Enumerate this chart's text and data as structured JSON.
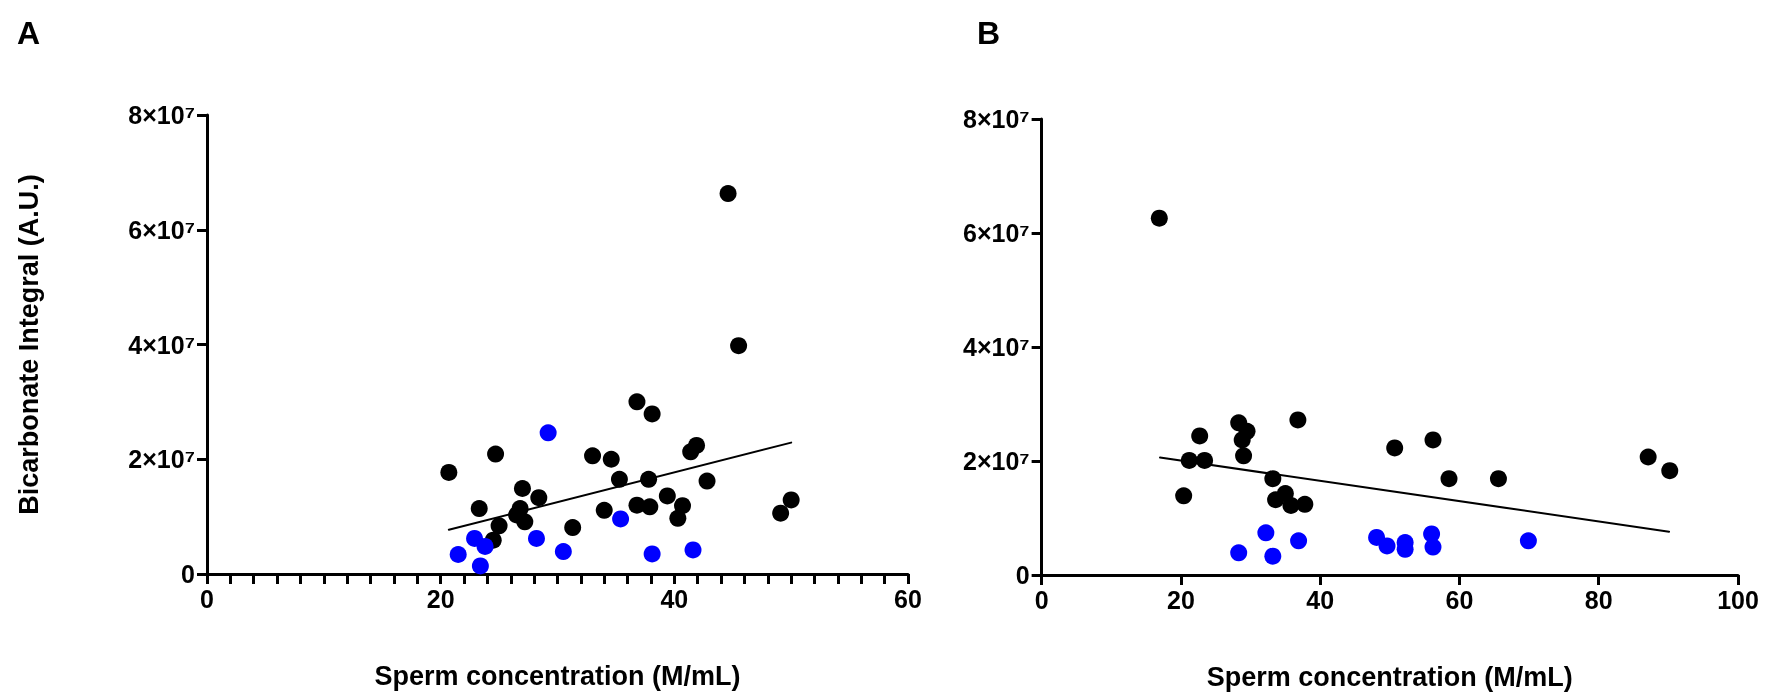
{
  "chart_data": [
    {
      "type": "scatter",
      "title": "A",
      "xlabel": "Sperm concentration (M/mL)",
      "ylabel": "Bicarbonate Integral (A.U.)",
      "marker": "circle",
      "grid": false,
      "xlim": [
        0,
        60
      ],
      "ylim": [
        0,
        80000000
      ],
      "xticks": [
        0,
        {
          "value": 2,
          "label": null
        },
        {
          "value": 4,
          "label": null
        },
        {
          "value": 6,
          "label": null
        },
        {
          "value": 8,
          "label": null
        },
        {
          "value": 10,
          "label": null
        },
        {
          "value": 12,
          "label": null
        },
        {
          "value": 14,
          "label": null
        },
        {
          "value": 16,
          "label": null
        },
        {
          "value": 18,
          "label": null
        },
        20,
        {
          "value": 22,
          "label": null
        },
        {
          "value": 24,
          "label": null
        },
        {
          "value": 26,
          "label": null
        },
        {
          "value": 28,
          "label": null
        },
        {
          "value": 30,
          "label": null
        },
        {
          "value": 32,
          "label": null
        },
        {
          "value": 34,
          "label": null
        },
        {
          "value": 36,
          "label": null
        },
        {
          "value": 38,
          "label": null
        },
        40,
        {
          "value": 42,
          "label": null
        },
        {
          "value": 44,
          "label": null
        },
        {
          "value": 46,
          "label": null
        },
        {
          "value": 48,
          "label": null
        },
        {
          "value": 50,
          "label": null
        },
        {
          "value": 52,
          "label": null
        },
        {
          "value": 54,
          "label": null
        },
        {
          "value": 56,
          "label": null
        },
        {
          "value": 58,
          "label": null
        },
        60
      ],
      "yticks": [
        0,
        {
          "value": 20000000,
          "label": "2×10⁷"
        },
        {
          "value": 40000000,
          "label": "4×10⁷"
        },
        {
          "value": 60000000,
          "label": "6×10⁷"
        },
        {
          "value": 80000000,
          "label": "8×10⁷"
        }
      ],
      "series": [
        {
          "color": "#000000",
          "x": [
            44.6,
            45.5,
            36.8,
            38.1,
            24.7,
            20.7,
            33.0,
            34.6,
            41.9,
            41.4,
            35.3,
            37.8,
            42.8,
            27.0,
            28.4,
            23.3,
            26.8,
            26.5,
            27.2,
            34.0,
            36.8,
            37.9,
            39.4,
            40.7,
            40.3,
            31.3,
            25.0,
            24.5,
            50.0,
            49.1
          ],
          "values": [
            66300000,
            39800000,
            30000000,
            27900000,
            20900000,
            17700000,
            20600000,
            20000000,
            22400000,
            21300000,
            16500000,
            16500000,
            16200000,
            14900000,
            13300000,
            11400000,
            11400000,
            10300000,
            9100000,
            11100000,
            12000000,
            11700000,
            13600000,
            11900000,
            9700000,
            8100000,
            8400000,
            5900000,
            12900000,
            10600000
          ]
        },
        {
          "color": "#0000ff",
          "x": [
            29.2,
            35.4,
            28.2,
            22.9,
            23.8,
            21.5,
            23.4,
            30.5,
            38.1,
            41.6
          ],
          "values": [
            24600000,
            9600000,
            6200000,
            6200000,
            4800000,
            3400000,
            1400000,
            3900000,
            3500000,
            4200000
          ]
        },
        {
          "type": "line",
          "marker": "none",
          "line_style": "solid",
          "color": "#000000",
          "x": [
            20.7,
            50.0
          ],
          "values": [
            7700000,
            22900000
          ]
        }
      ]
    },
    {
      "type": "scatter",
      "title": "B",
      "xlabel": "Sperm concentration (M/mL)",
      "marker": "circle",
      "grid": false,
      "xlim": [
        0,
        100
      ],
      "ylim": [
        0,
        80000000
      ],
      "xticks": [
        0,
        20,
        40,
        60,
        80,
        100
      ],
      "yticks": [
        0,
        {
          "value": 20000000,
          "label": "2×10⁷"
        },
        {
          "value": 40000000,
          "label": "4×10⁷"
        },
        {
          "value": 60000000,
          "label": "6×10⁷"
        },
        {
          "value": 80000000,
          "label": "8×10⁷"
        }
      ],
      "series": [
        {
          "color": "#000000",
          "x": [
            16.9,
            22.7,
            28.3,
            29.5,
            28.8,
            29.0,
            21.2,
            23.4,
            20.4,
            36.8,
            33.2,
            35.0,
            33.6,
            35.8,
            37.8,
            50.7,
            56.2,
            58.5,
            65.6,
            87.1,
            90.2
          ],
          "values": [
            62600000,
            24400000,
            26700000,
            25200000,
            23700000,
            20900000,
            20100000,
            20100000,
            13900000,
            27200000,
            16900000,
            14300000,
            13200000,
            12200000,
            12400000,
            22300000,
            23700000,
            16900000,
            16900000,
            20700000,
            18300000
          ]
        },
        {
          "color": "#0000ff",
          "x": [
            28.3,
            32.2,
            33.2,
            36.9,
            48.1,
            49.6,
            52.2,
            52.2,
            56.0,
            56.2,
            69.9
          ],
          "values": [
            3900000,
            7400000,
            3300000,
            6000000,
            6600000,
            5100000,
            5700000,
            4500000,
            7200000,
            4900000,
            6000000
          ]
        },
        {
          "type": "line",
          "marker": "none",
          "line_style": "solid",
          "color": "#000000",
          "x": [
            17.0,
            90.1
          ],
          "values": [
            20600000,
            7600000
          ]
        }
      ]
    }
  ]
}
